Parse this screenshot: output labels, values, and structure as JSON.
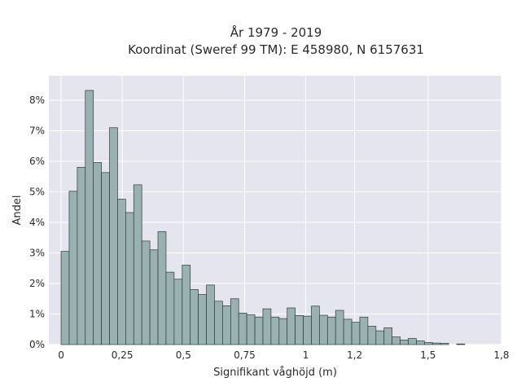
{
  "chart_data": {
    "type": "bar",
    "title_line1": "År 1979 - 2019",
    "title_line2": "Koordinat (Sweref 99 TM): E 458980, N 6157631",
    "xlabel": "Signifikant våghöjd (m)",
    "ylabel": "Andel",
    "xlim": [
      -0.05,
      1.8
    ],
    "ylim": [
      0,
      8.8
    ],
    "grid": true,
    "x_ticks": [
      {
        "value": 0,
        "label": "0"
      },
      {
        "value": 0.25,
        "label": "0,25"
      },
      {
        "value": 0.5,
        "label": "0,5"
      },
      {
        "value": 0.75,
        "label": "0,75"
      },
      {
        "value": 1,
        "label": "1"
      },
      {
        "value": 1.2,
        "label": "1,2"
      },
      {
        "value": 1.5,
        "label": "1,5"
      },
      {
        "value": 1.8,
        "label": "1,8"
      }
    ],
    "y_ticks": [
      {
        "value": 0,
        "label": "0%"
      },
      {
        "value": 1,
        "label": "1%"
      },
      {
        "value": 2,
        "label": "2%"
      },
      {
        "value": 3,
        "label": "3%"
      },
      {
        "value": 4,
        "label": "4%"
      },
      {
        "value": 5,
        "label": "5%"
      },
      {
        "value": 6,
        "label": "6%"
      },
      {
        "value": 7,
        "label": "7%"
      },
      {
        "value": 8,
        "label": "8%"
      }
    ],
    "bin_width": 0.033,
    "bins_start": [
      0.0,
      0.033,
      0.066,
      0.099,
      0.132,
      0.165,
      0.198,
      0.231,
      0.264,
      0.297,
      0.33,
      0.363,
      0.396,
      0.429,
      0.462,
      0.495,
      0.528,
      0.561,
      0.594,
      0.627,
      0.66,
      0.693,
      0.726,
      0.759,
      0.792,
      0.825,
      0.858,
      0.891,
      0.924,
      0.957,
      0.99,
      1.023,
      1.056,
      1.089,
      1.122,
      1.155,
      1.188,
      1.221,
      1.254,
      1.287,
      1.32,
      1.353,
      1.386,
      1.419,
      1.452,
      1.485,
      1.518,
      1.551,
      1.584,
      1.617,
      1.65,
      1.683,
      1.716
    ],
    "values": [
      3.05,
      5.02,
      5.8,
      8.32,
      5.96,
      5.63,
      7.1,
      4.76,
      4.32,
      5.23,
      3.39,
      3.1,
      3.7,
      2.37,
      2.14,
      2.6,
      1.8,
      1.64,
      1.95,
      1.42,
      1.27,
      1.5,
      1.03,
      0.98,
      0.9,
      1.17,
      0.9,
      0.85,
      1.2,
      0.95,
      0.93,
      1.26,
      0.96,
      0.9,
      1.12,
      0.83,
      0.73,
      0.9,
      0.6,
      0.45,
      0.55,
      0.25,
      0.15,
      0.2,
      0.12,
      0.07,
      0.05,
      0.04,
      0.0,
      0.02,
      0.0,
      0.0,
      0.0
    ],
    "colors": {
      "bar_fill": "#99b1b1",
      "bar_stroke": "#2e3b3b",
      "plot_bg": "#e5e5ef",
      "grid": "#ffffff"
    }
  }
}
